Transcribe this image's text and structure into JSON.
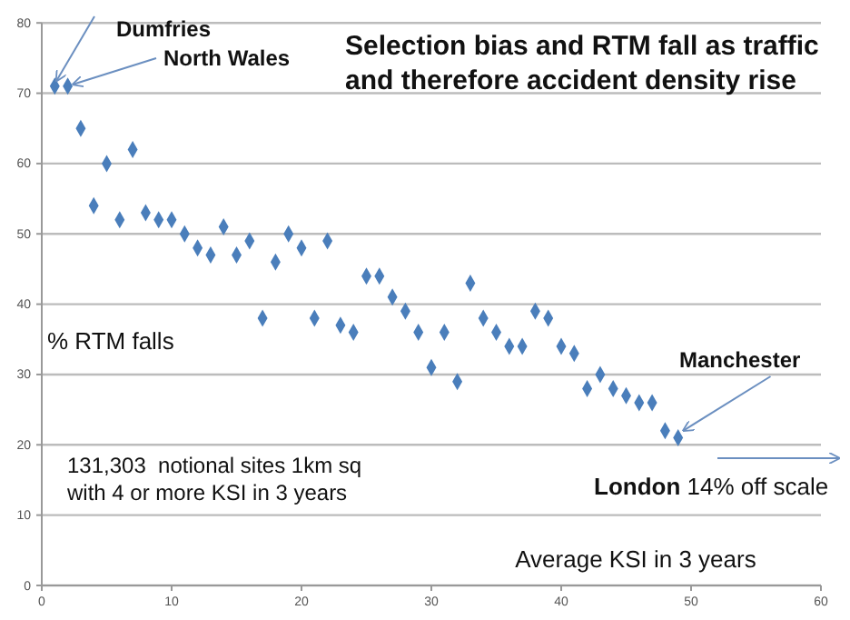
{
  "chart_data": {
    "type": "scatter",
    "title": "Selection bias and RTM fall as traffic and therefore accident density rise",
    "xlabel": "Average KSI in 3 years",
    "ylabel": "% RTM falls",
    "x": [
      1,
      2,
      3,
      4,
      5,
      6,
      7,
      8,
      9,
      10,
      11,
      12,
      13,
      14,
      15,
      16,
      17,
      18,
      19,
      20,
      21,
      22,
      23,
      24,
      25,
      26,
      27,
      28,
      29,
      30,
      31,
      32,
      33,
      34,
      35,
      36,
      37,
      38,
      39,
      40,
      41,
      42,
      43,
      44,
      45,
      46,
      47,
      48,
      49
    ],
    "series": [
      {
        "color": "#4a7ebb",
        "values": [
          71,
          71,
          65,
          54,
          60,
          52,
          62,
          53,
          52,
          52,
          50,
          48,
          47,
          51,
          47,
          49,
          38,
          46,
          50,
          48,
          38,
          49,
          37,
          36,
          44,
          44,
          41,
          39,
          36,
          31,
          36,
          29,
          43,
          38,
          36,
          34,
          34,
          39,
          38,
          34,
          33,
          28,
          30,
          28,
          27,
          26,
          26,
          22,
          21
        ]
      }
    ],
    "annotations": [
      {
        "text": "Dumfries",
        "x": 1,
        "y": 71
      },
      {
        "text": "North Wales",
        "x": 2,
        "y": 71
      },
      {
        "text": "Manchester",
        "x": 49,
        "y": 21
      },
      "London 14% off scale",
      "131,303  notional sites 1km sq with 4 or more KSI in 3 years"
    ],
    "xlim": [
      0,
      60
    ],
    "xticks": [
      0,
      10,
      20,
      30,
      40,
      50,
      60
    ],
    "ylim": [
      0,
      80
    ],
    "yticks": [
      0,
      10,
      20,
      30,
      40,
      50,
      60,
      70,
      80
    ],
    "grid": "y",
    "marker": "diamond"
  }
}
